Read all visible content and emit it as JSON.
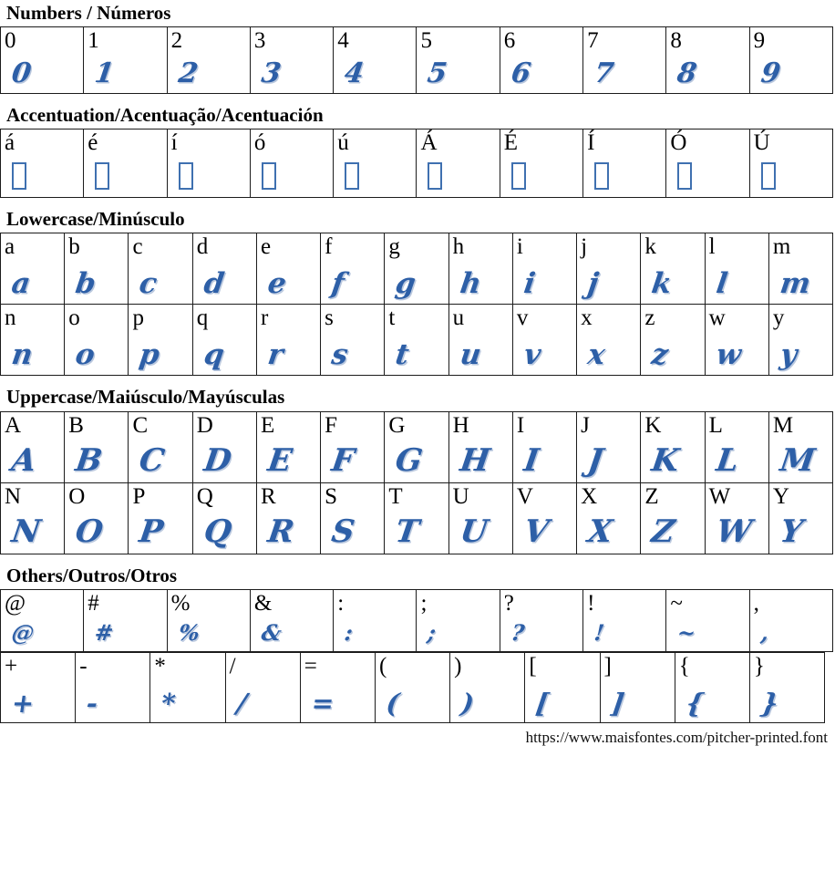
{
  "font_page": {
    "source_url": "https://www.maisfontes.com/pitcher-printed.font",
    "glyph_color": "#2d5fa7",
    "missing_box_color": "#3f70b0"
  },
  "sections": [
    {
      "id": "numbers",
      "title": "Numbers / Números",
      "rows": [
        {
          "cells": [
            "0",
            "1",
            "2",
            "3",
            "4",
            "5",
            "6",
            "7",
            "8",
            "9"
          ]
        }
      ]
    },
    {
      "id": "accentuation",
      "title": "Accentuation/Acentuação/Acentuación",
      "missing_glyphs": true,
      "rows": [
        {
          "cells": [
            "á",
            "é",
            "í",
            "ó",
            "ú",
            "Á",
            "É",
            "Í",
            "Ó",
            "Ú"
          ]
        }
      ]
    },
    {
      "id": "lowercase",
      "title": "Lowercase/Minúsculo",
      "rows": [
        {
          "cells": [
            "a",
            "b",
            "c",
            "d",
            "e",
            "f",
            "g",
            "h",
            "i",
            "j",
            "k",
            "l",
            "m"
          ]
        },
        {
          "cells": [
            "n",
            "o",
            "p",
            "q",
            "r",
            "s",
            "t",
            "u",
            "v",
            "x",
            "z",
            "w",
            "y"
          ]
        }
      ]
    },
    {
      "id": "uppercase",
      "title": "Uppercase/Maiúsculo/Mayúsculas",
      "rows": [
        {
          "cells": [
            "A",
            "B",
            "C",
            "D",
            "E",
            "F",
            "G",
            "H",
            "I",
            "J",
            "K",
            "L",
            "M"
          ]
        },
        {
          "cells": [
            "N",
            "O",
            "P",
            "Q",
            "R",
            "S",
            "T",
            "U",
            "V",
            "X",
            "Z",
            "W",
            "Y"
          ]
        }
      ]
    },
    {
      "id": "others",
      "title": "Others/Outros/Otros",
      "rows": [
        {
          "cells": [
            "@",
            "#",
            "%",
            "&",
            ":",
            ";",
            "?",
            "!",
            "~",
            ","
          ]
        },
        {
          "cells": [
            "+",
            "-",
            "*",
            "/",
            "=",
            "(",
            ")",
            "[",
            "]",
            "{",
            "}"
          ],
          "narrow": true
        }
      ]
    }
  ]
}
